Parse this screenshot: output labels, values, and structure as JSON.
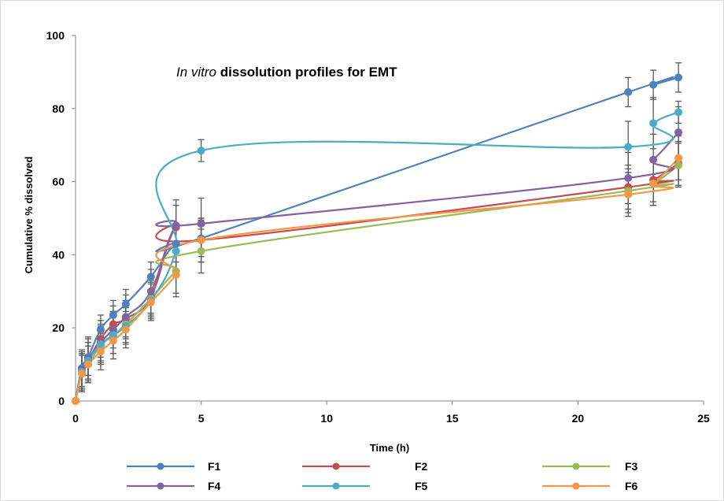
{
  "chart_data": {
    "type": "line",
    "title_italic": "In vitro",
    "title_rest": " dissolution profiles for EMT",
    "xlabel": "Time (h)",
    "ylabel": "Cumulative % dissolved",
    "xlim": [
      0,
      25
    ],
    "ylim": [
      0,
      100
    ],
    "xticks": [
      "0",
      "5",
      "10",
      "15",
      "20",
      "25"
    ],
    "yticks": [
      "0",
      "20",
      "40",
      "60",
      "80",
      "100"
    ],
    "grid": false,
    "legend_position": "bottom",
    "x": [
      0,
      0.25,
      0.5,
      1,
      1.5,
      2,
      3,
      4,
      5,
      22,
      23,
      24
    ],
    "series": [
      {
        "name": "F1",
        "color": "#4f81bd",
        "y": [
          0,
          9,
          12,
          19.5,
          23.5,
          26.5,
          34,
          43,
          44.5,
          84.5,
          86.5,
          88.5
        ],
        "err": [
          0,
          5,
          5,
          4,
          4,
          4,
          4,
          5,
          5,
          4,
          4,
          4
        ]
      },
      {
        "name": "F2",
        "color": "#c0504d",
        "y": [
          0,
          8,
          11,
          17,
          21,
          22.5,
          28.5,
          47.5,
          44,
          58.5,
          60.5,
          65
        ],
        "err": [
          0,
          5,
          5,
          5,
          5,
          5,
          5,
          6,
          6,
          6,
          6,
          6
        ]
      },
      {
        "name": "F3",
        "color": "#9bbb59",
        "y": [
          0,
          7.5,
          10,
          15,
          18,
          21,
          28,
          35.5,
          41,
          57.5,
          59.5,
          64.5
        ],
        "err": [
          0,
          5,
          5,
          5,
          5,
          5,
          5,
          6,
          6,
          6,
          6,
          6
        ]
      },
      {
        "name": "F4",
        "color": "#8064a2",
        "y": [
          0,
          8.5,
          11.5,
          16,
          19.5,
          23,
          30,
          48,
          48.5,
          61,
          66,
          73.5
        ],
        "err": [
          0,
          5,
          6,
          5,
          5,
          6,
          6,
          7,
          7,
          7,
          7,
          7
        ]
      },
      {
        "name": "F5",
        "color": "#4bacc6",
        "y": [
          0,
          8,
          11,
          15.5,
          18,
          20.5,
          27.5,
          41,
          68.5,
          69.5,
          76,
          79
        ],
        "err": [
          0,
          5,
          5,
          5,
          5,
          5,
          5,
          7,
          3,
          7,
          7,
          3
        ]
      },
      {
        "name": "F6",
        "color": "#f79646",
        "y": [
          0,
          7.5,
          10,
          13.5,
          16.5,
          19.5,
          27,
          34.5,
          44,
          56.5,
          59.5,
          66.5
        ],
        "err": [
          0,
          5,
          5,
          5,
          5,
          5,
          5,
          6,
          6,
          6,
          6,
          6
        ]
      }
    ]
  }
}
